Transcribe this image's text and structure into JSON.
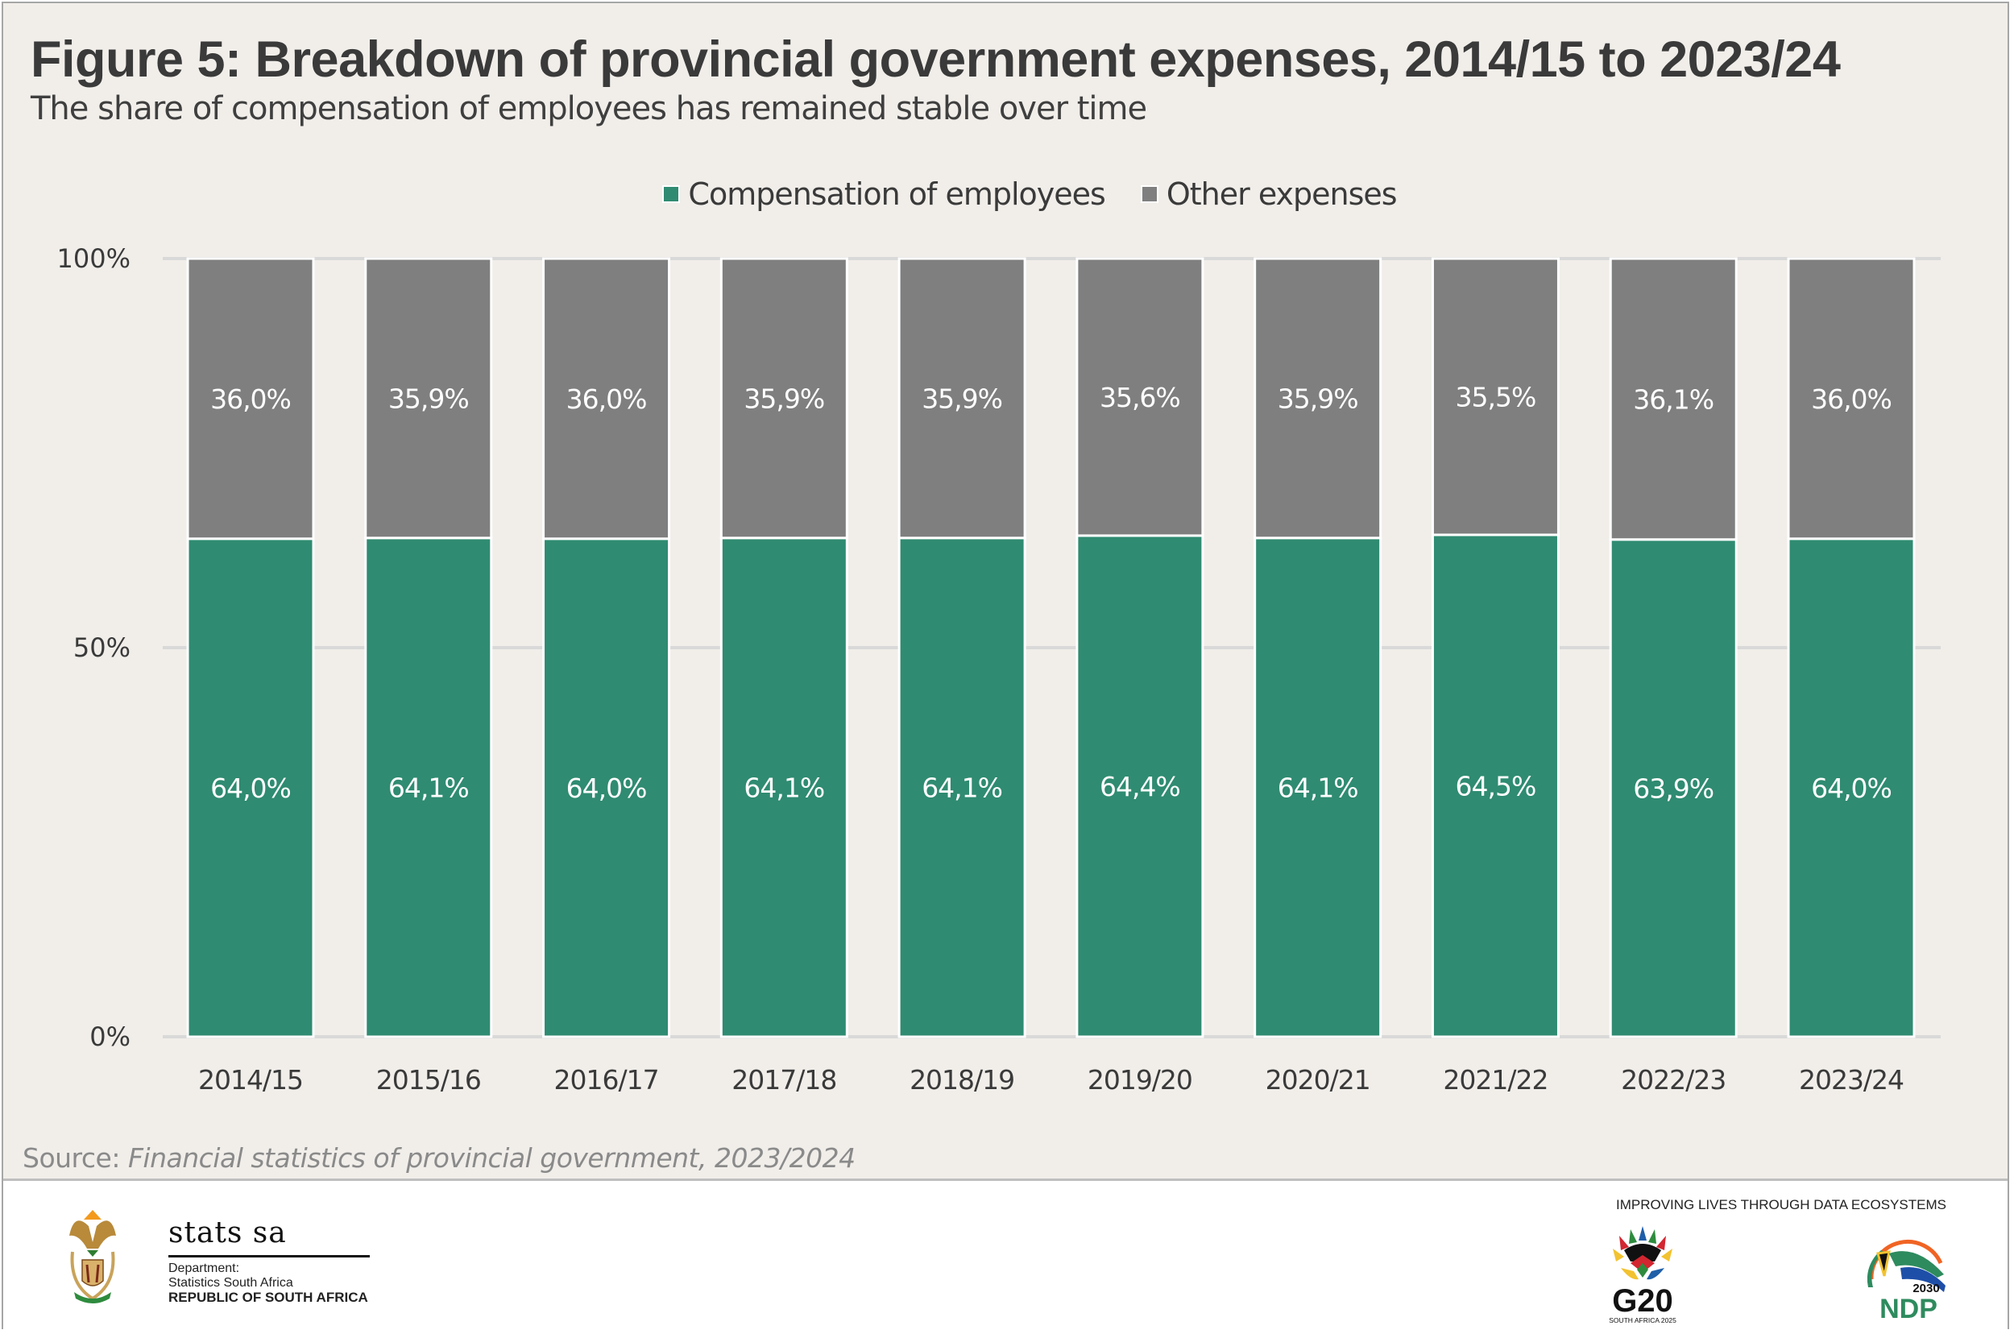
{
  "header": {
    "title": "Figure 5: Breakdown of provincial government expenses, 2014/15 to 2023/24",
    "subtitle": "The share of compensation of employees has remained stable over time"
  },
  "colors": {
    "compensation": "#2f8b71",
    "other": "#7f7f7f",
    "background": "#f1eeea",
    "gridline": "#d9d9d9"
  },
  "chart_data": {
    "type": "bar",
    "stacked": true,
    "title": "Figure 5: Breakdown of provincial government expenses, 2014/15 to 2023/24",
    "subtitle": "The share of compensation of employees has remained stable over time",
    "xlabel": "",
    "ylabel": "",
    "ylim": [
      0,
      100
    ],
    "yticks": [
      0,
      50,
      100
    ],
    "ytick_labels": [
      "0%",
      "50%",
      "100%"
    ],
    "grid": true,
    "legend_position": "top-center",
    "categories": [
      "2014/15",
      "2015/16",
      "2016/17",
      "2017/18",
      "2018/19",
      "2019/20",
      "2020/21",
      "2021/22",
      "2022/23",
      "2023/24"
    ],
    "series": [
      {
        "name": "Compensation of employees",
        "color": "#2f8b71",
        "values": [
          64.0,
          64.1,
          64.0,
          64.1,
          64.1,
          64.4,
          64.1,
          64.5,
          63.9,
          64.0
        ],
        "labels": [
          "64,0%",
          "64,1%",
          "64,0%",
          "64,1%",
          "64,1%",
          "64,4%",
          "64,1%",
          "64,5%",
          "63,9%",
          "64,0%"
        ]
      },
      {
        "name": "Other expenses",
        "color": "#7f7f7f",
        "values": [
          36.0,
          35.9,
          36.0,
          35.9,
          35.9,
          35.6,
          35.9,
          35.5,
          36.1,
          36.0
        ],
        "labels": [
          "36,0%",
          "35,9%",
          "36,0%",
          "35,9%",
          "35,9%",
          "35,6%",
          "35,9%",
          "35,5%",
          "36,1%",
          "36,0%"
        ]
      }
    ]
  },
  "source": {
    "prefix": "Source: ",
    "text": "Financial statistics of provincial government, 2023/2024"
  },
  "footer": {
    "org_name": "stats sa",
    "dept_line1": "Department:",
    "dept_line2": "Statistics South Africa",
    "dept_line3": "REPUBLIC OF SOUTH AFRICA",
    "tagline": "IMPROVING LIVES THROUGH DATA ECOSYSTEMS",
    "g20_text": "G20",
    "g20_sub": "SOUTH AFRICA 2025",
    "ndp_year": "2030",
    "ndp_text": "NDP"
  }
}
